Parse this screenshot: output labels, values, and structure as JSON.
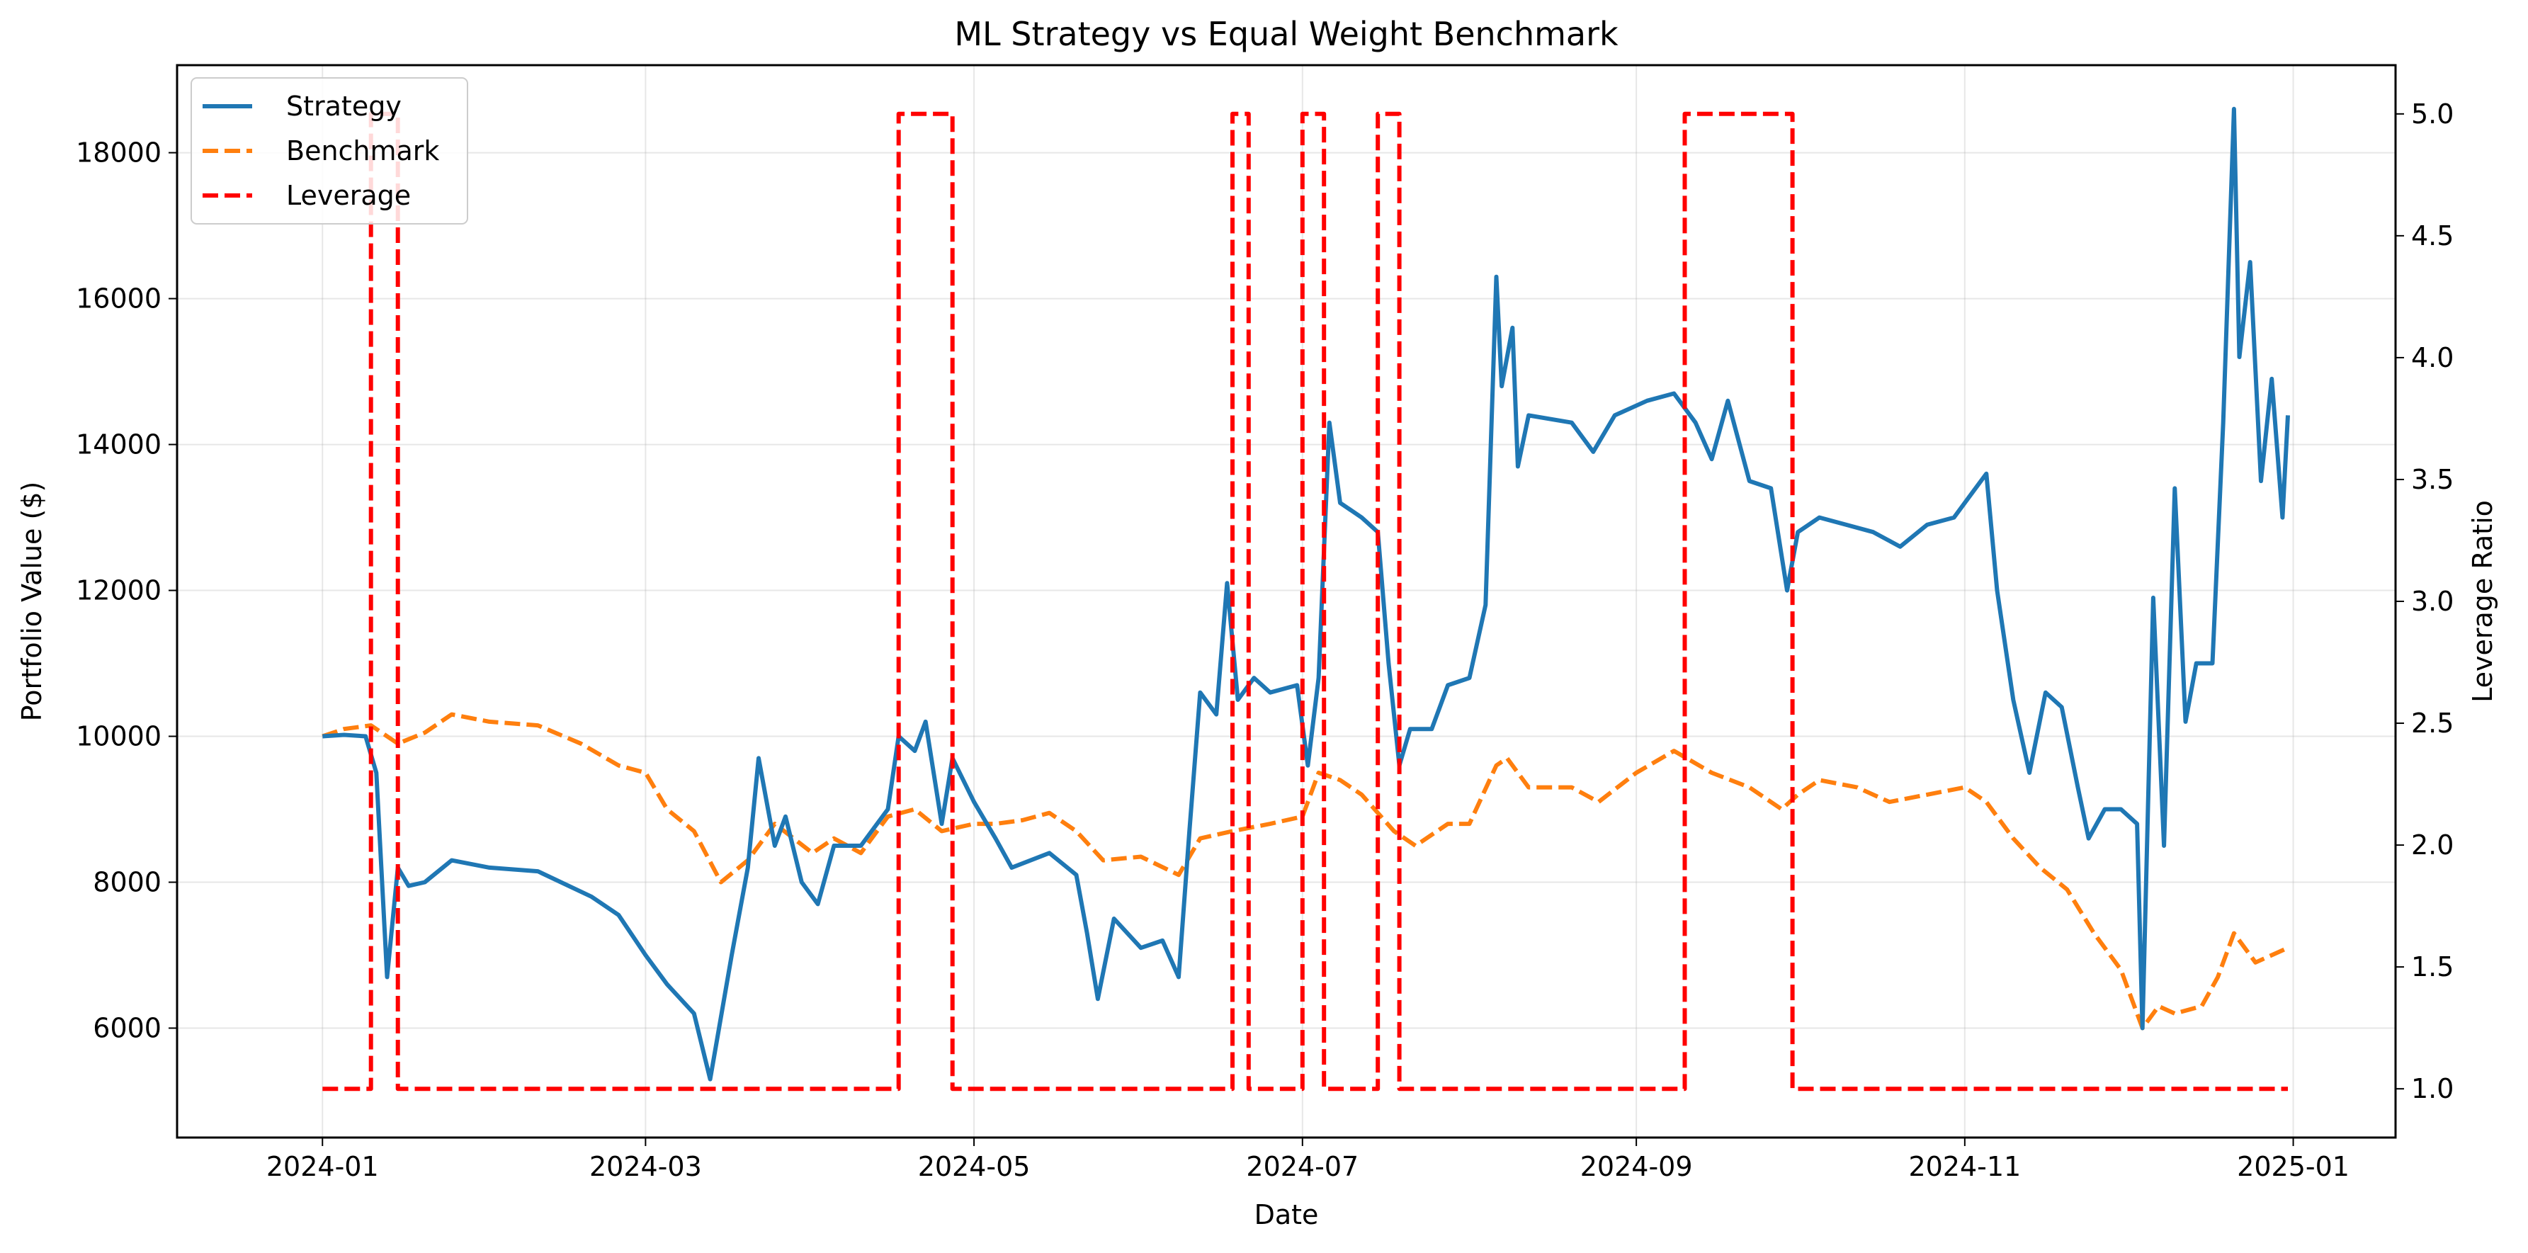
{
  "chart_data": {
    "type": "line",
    "title": "ML Strategy vs Equal Weight Benchmark",
    "xlabel": "Date",
    "ylabel": "Portfolio Value ($)",
    "y2label": "Leverage Ratio",
    "xlim": [
      "2023-12-05",
      "2025-01-20"
    ],
    "ylim": [
      4500,
      19200
    ],
    "y2lim": [
      0.8,
      5.2
    ],
    "grid": true,
    "legend_position": "top-left",
    "x_ticks": [
      {
        "date": "2024-01-01",
        "label": "2024-01"
      },
      {
        "date": "2024-03-01",
        "label": "2024-03"
      },
      {
        "date": "2024-05-01",
        "label": "2024-05"
      },
      {
        "date": "2024-07-01",
        "label": "2024-07"
      },
      {
        "date": "2024-09-01",
        "label": "2024-09"
      },
      {
        "date": "2024-11-01",
        "label": "2024-11"
      },
      {
        "date": "2025-01-01",
        "label": "2025-01"
      }
    ],
    "y_ticks": [
      6000,
      8000,
      10000,
      12000,
      14000,
      16000,
      18000
    ],
    "y2_ticks": [
      "1.0",
      "1.5",
      "2.0",
      "2.5",
      "3.0",
      "3.5",
      "4.0",
      "4.5",
      "5.0"
    ],
    "series": [
      {
        "name": "Strategy",
        "axis": "left",
        "color": "#1f77b4",
        "style": "solid",
        "points": [
          [
            "2024-01-01",
            10000
          ],
          [
            "2024-01-05",
            10020
          ],
          [
            "2024-01-09",
            10000
          ],
          [
            "2024-01-11",
            9500
          ],
          [
            "2024-01-13",
            6700
          ],
          [
            "2024-01-15",
            8200
          ],
          [
            "2024-01-17",
            7950
          ],
          [
            "2024-01-20",
            8000
          ],
          [
            "2024-01-25",
            8300
          ],
          [
            "2024-02-01",
            8200
          ],
          [
            "2024-02-10",
            8150
          ],
          [
            "2024-02-20",
            7800
          ],
          [
            "2024-02-25",
            7550
          ],
          [
            "2024-03-01",
            7000
          ],
          [
            "2024-03-05",
            6600
          ],
          [
            "2024-03-10",
            6200
          ],
          [
            "2024-03-13",
            5300
          ],
          [
            "2024-03-17",
            7000
          ],
          [
            "2024-03-20",
            8200
          ],
          [
            "2024-03-22",
            9700
          ],
          [
            "2024-03-25",
            8500
          ],
          [
            "2024-03-27",
            8900
          ],
          [
            "2024-03-30",
            8000
          ],
          [
            "2024-04-02",
            7700
          ],
          [
            "2024-04-05",
            8500
          ],
          [
            "2024-04-10",
            8500
          ],
          [
            "2024-04-15",
            9000
          ],
          [
            "2024-04-17",
            10000
          ],
          [
            "2024-04-20",
            9800
          ],
          [
            "2024-04-22",
            10200
          ],
          [
            "2024-04-25",
            8800
          ],
          [
            "2024-04-27",
            9700
          ],
          [
            "2024-05-01",
            9100
          ],
          [
            "2024-05-05",
            8600
          ],
          [
            "2024-05-08",
            8200
          ],
          [
            "2024-05-15",
            8400
          ],
          [
            "2024-05-20",
            8100
          ],
          [
            "2024-05-22",
            7300
          ],
          [
            "2024-05-24",
            6400
          ],
          [
            "2024-05-27",
            7500
          ],
          [
            "2024-06-01",
            7100
          ],
          [
            "2024-06-05",
            7200
          ],
          [
            "2024-06-08",
            6700
          ],
          [
            "2024-06-10",
            8700
          ],
          [
            "2024-06-12",
            10600
          ],
          [
            "2024-06-15",
            10300
          ],
          [
            "2024-06-17",
            12100
          ],
          [
            "2024-06-19",
            10500
          ],
          [
            "2024-06-22",
            10800
          ],
          [
            "2024-06-25",
            10600
          ],
          [
            "2024-06-30",
            10700
          ],
          [
            "2024-07-02",
            9600
          ],
          [
            "2024-07-04",
            10800
          ],
          [
            "2024-07-06",
            14300
          ],
          [
            "2024-07-08",
            13200
          ],
          [
            "2024-07-12",
            13000
          ],
          [
            "2024-07-15",
            12800
          ],
          [
            "2024-07-17",
            11000
          ],
          [
            "2024-07-19",
            9600
          ],
          [
            "2024-07-21",
            10100
          ],
          [
            "2024-07-25",
            10100
          ],
          [
            "2024-07-28",
            10700
          ],
          [
            "2024-08-01",
            10800
          ],
          [
            "2024-08-04",
            11800
          ],
          [
            "2024-08-06",
            16300
          ],
          [
            "2024-08-07",
            14800
          ],
          [
            "2024-08-09",
            15600
          ],
          [
            "2024-08-10",
            13700
          ],
          [
            "2024-08-12",
            14400
          ],
          [
            "2024-08-20",
            14300
          ],
          [
            "2024-08-24",
            13900
          ],
          [
            "2024-08-28",
            14400
          ],
          [
            "2024-09-03",
            14600
          ],
          [
            "2024-09-08",
            14700
          ],
          [
            "2024-09-12",
            14300
          ],
          [
            "2024-09-15",
            13800
          ],
          [
            "2024-09-18",
            14600
          ],
          [
            "2024-09-22",
            13500
          ],
          [
            "2024-09-26",
            13400
          ],
          [
            "2024-09-29",
            12000
          ],
          [
            "2024-10-01",
            12800
          ],
          [
            "2024-10-05",
            13000
          ],
          [
            "2024-10-10",
            12900
          ],
          [
            "2024-10-15",
            12800
          ],
          [
            "2024-10-20",
            12600
          ],
          [
            "2024-10-25",
            12900
          ],
          [
            "2024-10-30",
            13000
          ],
          [
            "2024-11-02",
            13300
          ],
          [
            "2024-11-05",
            13600
          ],
          [
            "2024-11-07",
            12000
          ],
          [
            "2024-11-10",
            10500
          ],
          [
            "2024-11-13",
            9500
          ],
          [
            "2024-11-16",
            10600
          ],
          [
            "2024-11-19",
            10400
          ],
          [
            "2024-11-22",
            9300
          ],
          [
            "2024-11-24",
            8600
          ],
          [
            "2024-11-27",
            9000
          ],
          [
            "2024-11-30",
            9000
          ],
          [
            "2024-12-03",
            8800
          ],
          [
            "2024-12-04",
            6000
          ],
          [
            "2024-12-06",
            11900
          ],
          [
            "2024-12-08",
            8500
          ],
          [
            "2024-12-10",
            13400
          ],
          [
            "2024-12-12",
            10200
          ],
          [
            "2024-12-14",
            11000
          ],
          [
            "2024-12-17",
            11000
          ],
          [
            "2024-12-19",
            14300
          ],
          [
            "2024-12-21",
            18600
          ],
          [
            "2024-12-22",
            15200
          ],
          [
            "2024-12-24",
            16500
          ],
          [
            "2024-12-26",
            13500
          ],
          [
            "2024-12-28",
            14900
          ],
          [
            "2024-12-30",
            13000
          ],
          [
            "2024-12-31",
            14400
          ]
        ]
      },
      {
        "name": "Benchmark",
        "axis": "left",
        "color": "#ff7f0e",
        "style": "dashed",
        "points": [
          [
            "2024-01-01",
            10000
          ],
          [
            "2024-01-05",
            10100
          ],
          [
            "2024-01-10",
            10150
          ],
          [
            "2024-01-15",
            9900
          ],
          [
            "2024-01-20",
            10050
          ],
          [
            "2024-01-25",
            10300
          ],
          [
            "2024-02-01",
            10200
          ],
          [
            "2024-02-10",
            10150
          ],
          [
            "2024-02-18",
            9900
          ],
          [
            "2024-02-25",
            9600
          ],
          [
            "2024-03-01",
            9500
          ],
          [
            "2024-03-05",
            9000
          ],
          [
            "2024-03-10",
            8700
          ],
          [
            "2024-03-15",
            8000
          ],
          [
            "2024-03-20",
            8300
          ],
          [
            "2024-03-25",
            8800
          ],
          [
            "2024-04-01",
            8400
          ],
          [
            "2024-04-05",
            8600
          ],
          [
            "2024-04-10",
            8400
          ],
          [
            "2024-04-15",
            8900
          ],
          [
            "2024-04-20",
            9000
          ],
          [
            "2024-04-25",
            8700
          ],
          [
            "2024-05-01",
            8800
          ],
          [
            "2024-05-05",
            8800
          ],
          [
            "2024-05-10",
            8850
          ],
          [
            "2024-05-15",
            8950
          ],
          [
            "2024-05-20",
            8700
          ],
          [
            "2024-05-25",
            8300
          ],
          [
            "2024-06-01",
            8350
          ],
          [
            "2024-06-08",
            8100
          ],
          [
            "2024-06-12",
            8600
          ],
          [
            "2024-06-18",
            8700
          ],
          [
            "2024-06-25",
            8800
          ],
          [
            "2024-07-01",
            8900
          ],
          [
            "2024-07-04",
            9500
          ],
          [
            "2024-07-08",
            9400
          ],
          [
            "2024-07-12",
            9200
          ],
          [
            "2024-07-18",
            8700
          ],
          [
            "2024-07-22",
            8500
          ],
          [
            "2024-07-28",
            8800
          ],
          [
            "2024-08-01",
            8800
          ],
          [
            "2024-08-06",
            9600
          ],
          [
            "2024-08-08",
            9700
          ],
          [
            "2024-08-12",
            9300
          ],
          [
            "2024-08-20",
            9300
          ],
          [
            "2024-08-25",
            9100
          ],
          [
            "2024-09-01",
            9500
          ],
          [
            "2024-09-08",
            9800
          ],
          [
            "2024-09-15",
            9500
          ],
          [
            "2024-09-22",
            9300
          ],
          [
            "2024-09-28",
            9000
          ],
          [
            "2024-10-01",
            9200
          ],
          [
            "2024-10-05",
            9400
          ],
          [
            "2024-10-12",
            9300
          ],
          [
            "2024-10-18",
            9100
          ],
          [
            "2024-10-25",
            9200
          ],
          [
            "2024-11-01",
            9300
          ],
          [
            "2024-11-05",
            9100
          ],
          [
            "2024-11-10",
            8600
          ],
          [
            "2024-11-15",
            8200
          ],
          [
            "2024-11-20",
            7900
          ],
          [
            "2024-11-25",
            7300
          ],
          [
            "2024-11-30",
            6800
          ],
          [
            "2024-12-04",
            6000
          ],
          [
            "2024-12-07",
            6300
          ],
          [
            "2024-12-10",
            6200
          ],
          [
            "2024-12-15",
            6300
          ],
          [
            "2024-12-18",
            6700
          ],
          [
            "2024-12-21",
            7300
          ],
          [
            "2024-12-25",
            6900
          ],
          [
            "2024-12-31",
            7100
          ]
        ]
      },
      {
        "name": "Leverage",
        "axis": "right",
        "color": "#ff0000",
        "style": "dashed",
        "points": [
          [
            "2024-01-01",
            1.0
          ],
          [
            "2024-01-10",
            1.0
          ],
          [
            "2024-01-10",
            5.0
          ],
          [
            "2024-01-15",
            5.0
          ],
          [
            "2024-01-15",
            1.0
          ],
          [
            "2024-04-17",
            1.0
          ],
          [
            "2024-04-17",
            5.0
          ],
          [
            "2024-04-27",
            5.0
          ],
          [
            "2024-04-27",
            1.0
          ],
          [
            "2024-06-18",
            1.0
          ],
          [
            "2024-06-18",
            5.0
          ],
          [
            "2024-06-21",
            5.0
          ],
          [
            "2024-06-21",
            1.0
          ],
          [
            "2024-07-01",
            1.0
          ],
          [
            "2024-07-01",
            5.0
          ],
          [
            "2024-07-05",
            5.0
          ],
          [
            "2024-07-05",
            1.0
          ],
          [
            "2024-07-15",
            1.0
          ],
          [
            "2024-07-15",
            5.0
          ],
          [
            "2024-07-19",
            5.0
          ],
          [
            "2024-07-19",
            1.0
          ],
          [
            "2024-09-10",
            1.0
          ],
          [
            "2024-09-10",
            5.0
          ],
          [
            "2024-09-30",
            5.0
          ],
          [
            "2024-09-30",
            1.0
          ],
          [
            "2024-12-31",
            1.0
          ]
        ]
      }
    ]
  }
}
